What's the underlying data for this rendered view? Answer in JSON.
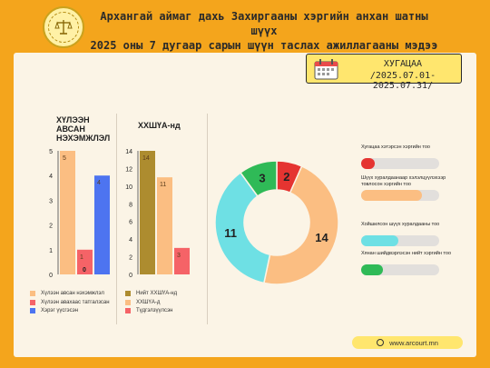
{
  "header": {
    "title_line1": "Архангай аймаг дахь Захиргааны хэргийн анхан шатны шүүх",
    "title_line2": "2025 оны 7 дугаар сарын шүүн таслах ажиллагааны мэдээ"
  },
  "period": {
    "label": "ХУГАЦАА",
    "range": "/2025.07.01-2025.07.31/"
  },
  "website": "www.arcourt.mn",
  "colors": {
    "background": "#f4a51c",
    "card": "#fbf4e6",
    "period_box": "#ffe66e"
  },
  "chart_data": [
    {
      "type": "bar",
      "title": "ХҮЛЭЭН АВСАН НЭХЭМЖЛЭЛ",
      "ylim": [
        0,
        5
      ],
      "yticks": [
        0,
        1,
        2,
        3,
        4,
        5
      ],
      "series": [
        {
          "name": "Хүлээн авсан нэхэмжлэл",
          "values": [
            5
          ],
          "color": "#fbbe82"
        },
        {
          "name": "Хүлээн авахаас татгалзсан",
          "values": [
            1
          ],
          "color": "#f56367"
        },
        {
          "name": "Хэрэг үүсгэсэн",
          "values": [
            4
          ],
          "color": "#4d74f0"
        }
      ],
      "data_labels": [
        "5",
        "1",
        "4"
      ],
      "extra_label": "0",
      "grid": false,
      "legend": "bottom"
    },
    {
      "type": "bar",
      "title": "ХХШҮА-нд",
      "ylim": [
        0,
        14
      ],
      "yticks": [
        0,
        2,
        4,
        6,
        8,
        10,
        12,
        14
      ],
      "series": [
        {
          "name": "Нийт ХХШҮА-нд",
          "values": [
            14
          ],
          "color": "#ad8c2f"
        },
        {
          "name": "ХХШҮА-д",
          "values": [
            11
          ],
          "color": "#fbbe82"
        },
        {
          "name": "Түдгэлзүүлсэн",
          "values": [
            3
          ],
          "color": "#f56367"
        }
      ],
      "data_labels": [
        "14",
        "11",
        "3"
      ],
      "grid": false,
      "legend": "bottom"
    },
    {
      "type": "pie",
      "donut": true,
      "slices": [
        {
          "value": 2,
          "color": "#e53431"
        },
        {
          "value": 14,
          "color": "#fbbe82"
        },
        {
          "value": 11,
          "color": "#6ee0e4"
        },
        {
          "value": 3,
          "color": "#2fba57"
        }
      ]
    },
    {
      "type": "bar",
      "orientation": "horizontal",
      "bars": [
        {
          "label": "Хугацаа хэтэрсэн хэргийн тоо",
          "fraction": 0.18,
          "color": "#e53431"
        },
        {
          "label": "Шүүх хуралдаанаар хэлэлцүүлэхээр товлосон хэргийн тоо",
          "fraction": 0.78,
          "color": "#fbbe82"
        },
        {
          "label": "Хойшилсон шүүх хуралдааны тоо",
          "fraction": 0.48,
          "color": "#6ee0e4"
        },
        {
          "label": "Хянан шийдвэрлэсэн нийт хэргийн тоо",
          "fraction": 0.28,
          "color": "#2fba57"
        }
      ]
    }
  ]
}
